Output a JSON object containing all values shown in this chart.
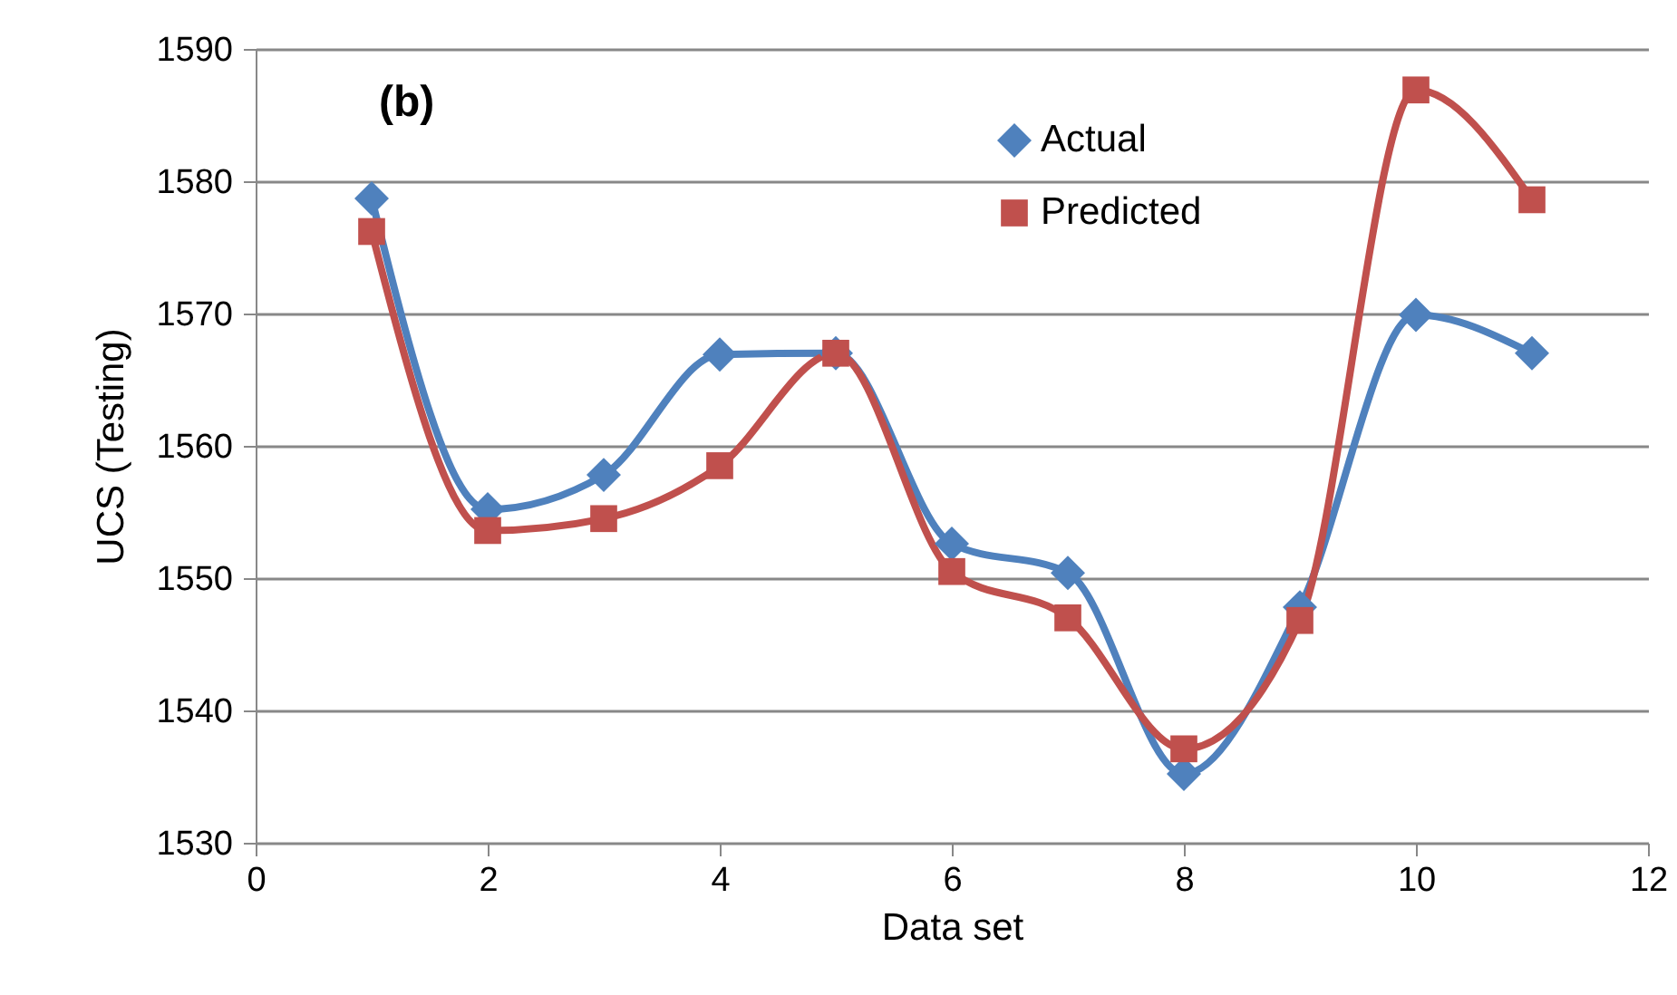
{
  "chart_data": {
    "type": "line",
    "xlabel": "Data set",
    "ylabel": "UCS (Testing)",
    "annotations": [
      "(b)"
    ],
    "x": [
      1,
      2,
      3,
      4,
      5,
      6,
      7,
      8,
      9,
      10,
      11
    ],
    "series": [
      {
        "name": "Actual",
        "color": "#4f81bd",
        "marker": "diamond",
        "values": [
          1578.7,
          1555.2,
          1557.8,
          1566.9,
          1567.0,
          1552.6,
          1550.4,
          1535.2,
          1547.8,
          1569.9,
          1567.0
        ]
      },
      {
        "name": "Predicted",
        "color": "#c0504d",
        "marker": "square",
        "values": [
          1576.2,
          1553.6,
          1554.5,
          1558.5,
          1567.0,
          1550.5,
          1547.0,
          1537.1,
          1546.8,
          1586.9,
          1578.6
        ]
      }
    ],
    "xlim": [
      0,
      12
    ],
    "xticks": [
      0,
      2,
      4,
      6,
      8,
      10,
      12
    ],
    "ylim": [
      1530,
      1590
    ],
    "yticks": [
      1530,
      1540,
      1550,
      1560,
      1570,
      1580,
      1590
    ],
    "grid": "y",
    "legend": "top right",
    "line_style": "solid"
  }
}
